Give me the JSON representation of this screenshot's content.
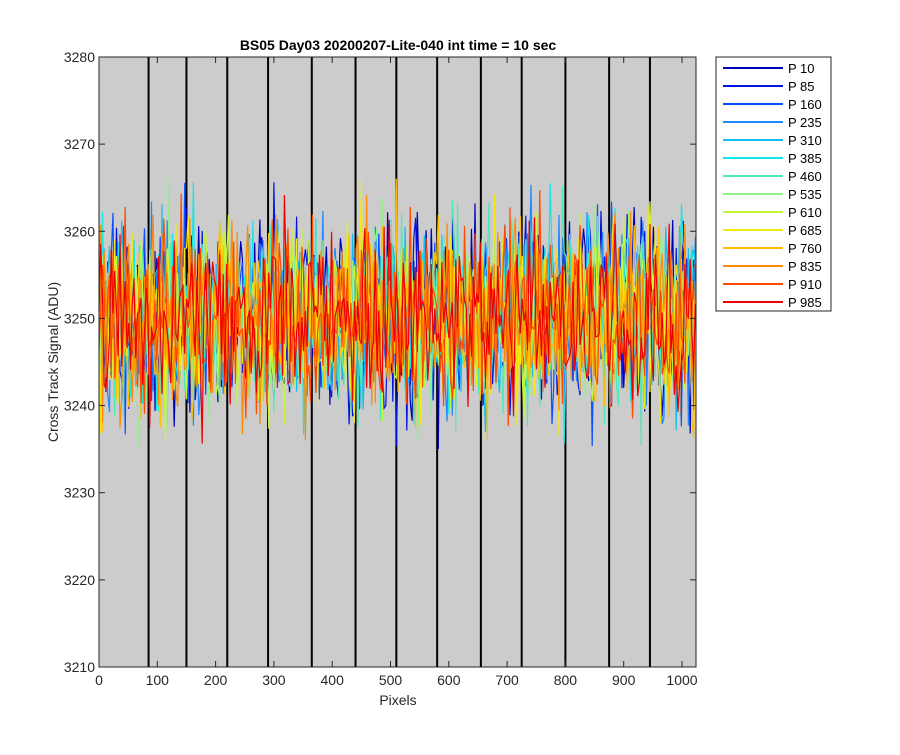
{
  "chart_data": {
    "type": "line",
    "title": "BS05 Day03 20200207-Lite-040 int time = 10 sec",
    "xlabel": "Pixels",
    "ylabel": "Cross Track Signal (ADU)",
    "xlim": [
      0,
      1024
    ],
    "ylim": [
      3210,
      3280
    ],
    "x_ticks": [
      0,
      100,
      200,
      300,
      400,
      500,
      600,
      700,
      800,
      900,
      1000
    ],
    "y_ticks": [
      3210,
      3220,
      3230,
      3240,
      3250,
      3260,
      3270,
      3280
    ],
    "x_tick_labels": [
      "0",
      "100",
      "200",
      "300",
      "400",
      "500",
      "600",
      "700",
      "800",
      "900",
      "1000"
    ],
    "y_tick_labels": [
      "3210",
      "3220",
      "3230",
      "3240",
      "3250",
      "3260",
      "3270",
      "3280"
    ],
    "tap_boundaries": [
      85,
      150,
      220,
      290,
      365,
      440,
      510,
      580,
      655,
      725,
      800,
      875,
      945
    ],
    "background_color": "#cccccc",
    "legend_location": "outside-right-top",
    "signal_mean": 3250,
    "signal_spread": 9,
    "series": [
      {
        "name": "P 10",
        "color": "#0000b8"
      },
      {
        "name": "P 85",
        "color": "#0016e0"
      },
      {
        "name": "P 160",
        "color": "#0c50ff"
      },
      {
        "name": "P 235",
        "color": "#1e88ff"
      },
      {
        "name": "P 310",
        "color": "#12bdf2"
      },
      {
        "name": "P 385",
        "color": "#14e6e6"
      },
      {
        "name": "P 460",
        "color": "#4ceaba"
      },
      {
        "name": "P 535",
        "color": "#8ef28a"
      },
      {
        "name": "P 610",
        "color": "#c8f53a"
      },
      {
        "name": "P 685",
        "color": "#f2ea10"
      },
      {
        "name": "P 760",
        "color": "#ffbf00"
      },
      {
        "name": "P 835",
        "color": "#ff8a00"
      },
      {
        "name": "P 910",
        "color": "#ff4a00"
      },
      {
        "name": "P 985",
        "color": "#ee0000"
      }
    ]
  }
}
